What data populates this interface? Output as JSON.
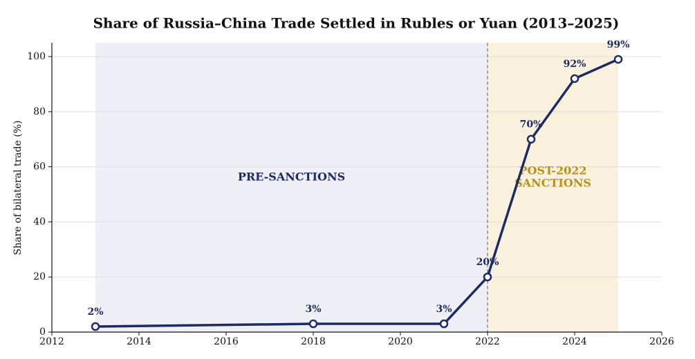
{
  "chart_data": {
    "type": "line",
    "title": "Share of Russia–China Trade Settled in Rubles or Yuan (2013–2025)",
    "y_label": "Share of bilateral trade (%)",
    "x": [
      2013,
      2018,
      2021,
      2022,
      2023,
      2024,
      2025
    ],
    "series": [
      {
        "color": "#1c2a66",
        "values": [
          2,
          3,
          3,
          20,
          70,
          92,
          99
        ],
        "value_labels": [
          "2%",
          "3%",
          "3%",
          "20%",
          "70%",
          "92%",
          "99%"
        ]
      }
    ],
    "regions": [
      {
        "label": [
          "PRE-SANCTIONS"
        ],
        "start": 2013,
        "end": 2022,
        "color": "#eef0f6",
        "label_color": "#1c2a66"
      },
      {
        "label": [
          "POST-2022",
          "SANCTIONS"
        ],
        "start": 2022,
        "end": 2025,
        "color": "#faf1dc",
        "label_color": "#b8901a"
      }
    ],
    "vline": 2022,
    "xlim": [
      2012,
      2026
    ],
    "xticks": [
      2012,
      2014,
      2016,
      2018,
      2020,
      2022,
      2024,
      2026
    ],
    "ylim": [
      0,
      105
    ],
    "yticks": [
      0,
      20,
      40,
      60,
      80,
      100
    ],
    "grid": true
  }
}
